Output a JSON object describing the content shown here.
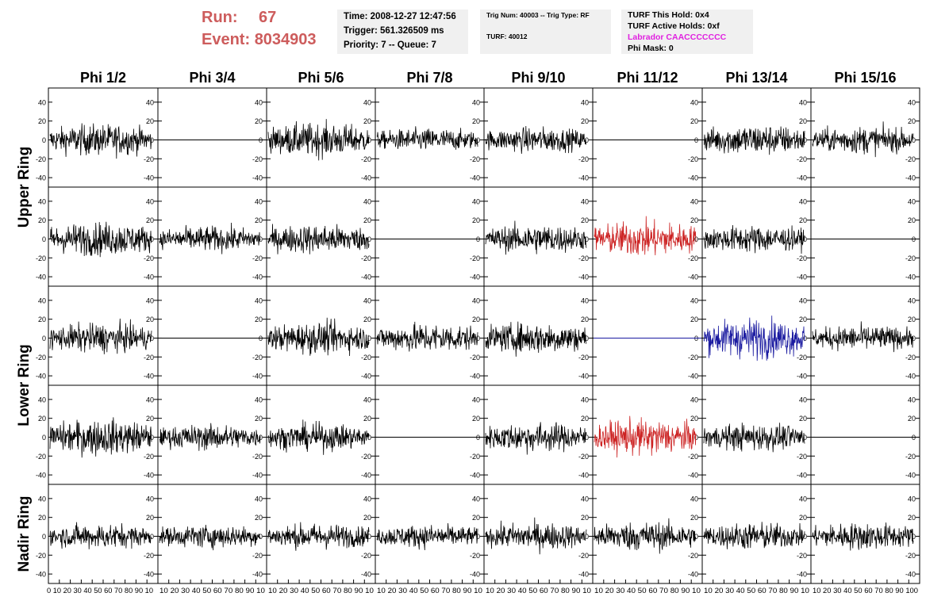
{
  "header": {
    "run_label": "Run:",
    "run_value": "67",
    "event_label": "Event:",
    "event_value": "8034903",
    "time_text": "Time: 2008-12-27 12:47:56",
    "trigger_text": "Trigger: 561.326509 ms",
    "priority_text": "Priority: 7 -- Queue: 7",
    "trig_num_text": "Trig Num: 40003 -- Trig Type: RF",
    "turf_text": "TURF: 40012",
    "turf_hold_text": "TURF This Hold: 0x4",
    "turf_active_text": "TURF Active Holds: 0xf",
    "labrador_text": "Labrador CAACCCCCCC",
    "phi_mask_text": "Phi Mask: 0"
  },
  "colors": {
    "run_event": "#cd5c5c",
    "labrador": "#e020e0",
    "trace_default": "#000000",
    "trace_red": "#cc2222",
    "trace_blue": "#1a1aa0"
  },
  "chart_data": {
    "type": "line",
    "column_titles": [
      "Phi 1/2",
      "Phi 3/4",
      "Phi 5/6",
      "Phi 7/8",
      "Phi 9/10",
      "Phi 11/12",
      "Phi 13/14",
      "Phi 15/16"
    ],
    "ring_labels": [
      "Upper Ring",
      "Lower Ring",
      "Nadir Ring"
    ],
    "ylim": [
      -50,
      55
    ],
    "yticks": [
      40,
      20,
      0,
      -20,
      -40
    ],
    "xlim": [
      0,
      100
    ],
    "xticks": [
      0,
      10,
      20,
      30,
      40,
      50,
      60,
      70,
      80,
      90,
      100
    ],
    "xtick_text_first": "0 10 20 30 40 50 60 70 80 90 10",
    "xtick_text": "10 20 30 40 50 60 70 80 90 10",
    "xtick_text_last": "10 20 30 40 50 60 70 80 90 100",
    "panels": [
      [
        {
          "mode": "wave",
          "amp": 15,
          "color": "#000000"
        },
        {
          "mode": "flat",
          "amp": 0,
          "color": "#000000"
        },
        {
          "mode": "wave",
          "amp": 16,
          "color": "#000000"
        },
        {
          "mode": "wave",
          "amp": 11,
          "color": "#000000"
        },
        {
          "mode": "wave",
          "amp": 12,
          "color": "#000000"
        },
        {
          "mode": "flat",
          "amp": 0,
          "color": "#000000"
        },
        {
          "mode": "wave",
          "amp": 15,
          "color": "#000000"
        },
        {
          "mode": "wave",
          "amp": 13,
          "color": "#000000"
        }
      ],
      [
        {
          "mode": "wave",
          "amp": 16,
          "color": "#000000"
        },
        {
          "mode": "wave",
          "amp": 12,
          "color": "#000000"
        },
        {
          "mode": "wave",
          "amp": 14,
          "color": "#000000"
        },
        {
          "mode": "flat",
          "amp": 0,
          "color": "#000000"
        },
        {
          "mode": "wave",
          "amp": 14,
          "color": "#000000"
        },
        {
          "mode": "wave",
          "amp": 17,
          "color": "#cc2222"
        },
        {
          "mode": "wave",
          "amp": 13,
          "color": "#000000"
        },
        {
          "mode": "flat",
          "amp": 0,
          "color": "#000000"
        }
      ],
      [
        {
          "mode": "wave",
          "amp": 14,
          "color": "#000000"
        },
        {
          "mode": "flat",
          "amp": 0,
          "color": "#000000"
        },
        {
          "mode": "wave",
          "amp": 15,
          "color": "#000000"
        },
        {
          "mode": "wave",
          "amp": 14,
          "color": "#000000"
        },
        {
          "mode": "wave",
          "amp": 15,
          "color": "#000000"
        },
        {
          "mode": "flat",
          "amp": 0,
          "color": "#1a1aa0"
        },
        {
          "mode": "wave",
          "amp": 19,
          "color": "#1a1aa0"
        },
        {
          "mode": "wave",
          "amp": 12,
          "color": "#000000"
        }
      ],
      [
        {
          "mode": "wave",
          "amp": 17,
          "color": "#000000"
        },
        {
          "mode": "wave",
          "amp": 12,
          "color": "#000000"
        },
        {
          "mode": "wave",
          "amp": 13,
          "color": "#000000"
        },
        {
          "mode": "flat",
          "amp": 0,
          "color": "#000000"
        },
        {
          "mode": "wave",
          "amp": 14,
          "color": "#000000"
        },
        {
          "mode": "wave",
          "amp": 17,
          "color": "#cc2222"
        },
        {
          "mode": "wave",
          "amp": 13,
          "color": "#000000"
        },
        {
          "mode": "flat",
          "amp": 0,
          "color": "#000000"
        }
      ],
      [
        {
          "mode": "wave",
          "amp": 12,
          "color": "#000000"
        },
        {
          "mode": "wave",
          "amp": 11,
          "color": "#000000"
        },
        {
          "mode": "wave",
          "amp": 12,
          "color": "#000000"
        },
        {
          "mode": "wave",
          "amp": 11,
          "color": "#000000"
        },
        {
          "mode": "wave",
          "amp": 13,
          "color": "#000000"
        },
        {
          "mode": "wave",
          "amp": 14,
          "color": "#000000"
        },
        {
          "mode": "wave",
          "amp": 13,
          "color": "#000000"
        },
        {
          "mode": "wave",
          "amp": 13,
          "color": "#000000"
        }
      ]
    ]
  }
}
